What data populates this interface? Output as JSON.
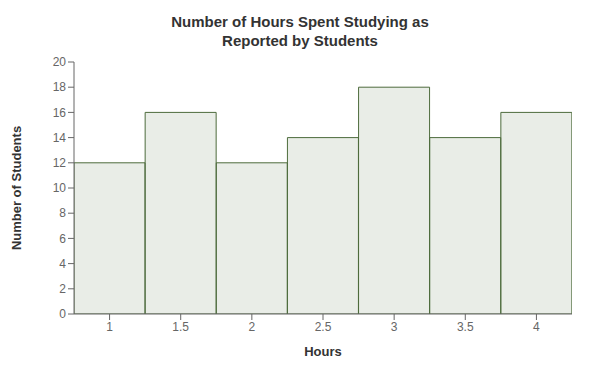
{
  "chart_data": {
    "type": "bar",
    "title": "Number of Hours Spent Studying as\nReported by Students",
    "xlabel": "Hours",
    "ylabel": "Number of Students",
    "x": [
      1,
      1.5,
      2,
      2.5,
      3,
      3.5,
      4
    ],
    "values": [
      12,
      16,
      12,
      14,
      18,
      14,
      16
    ],
    "color": "#4d6b3c",
    "xlim": [
      0.75,
      4.25
    ],
    "xticks": [
      1,
      1.5,
      2,
      2.5,
      3,
      3.5,
      4
    ],
    "ylim": [
      0,
      20
    ],
    "yticks": [
      0,
      2,
      4,
      6,
      8,
      10,
      12,
      14,
      16,
      18,
      20
    ],
    "grid": false
  }
}
